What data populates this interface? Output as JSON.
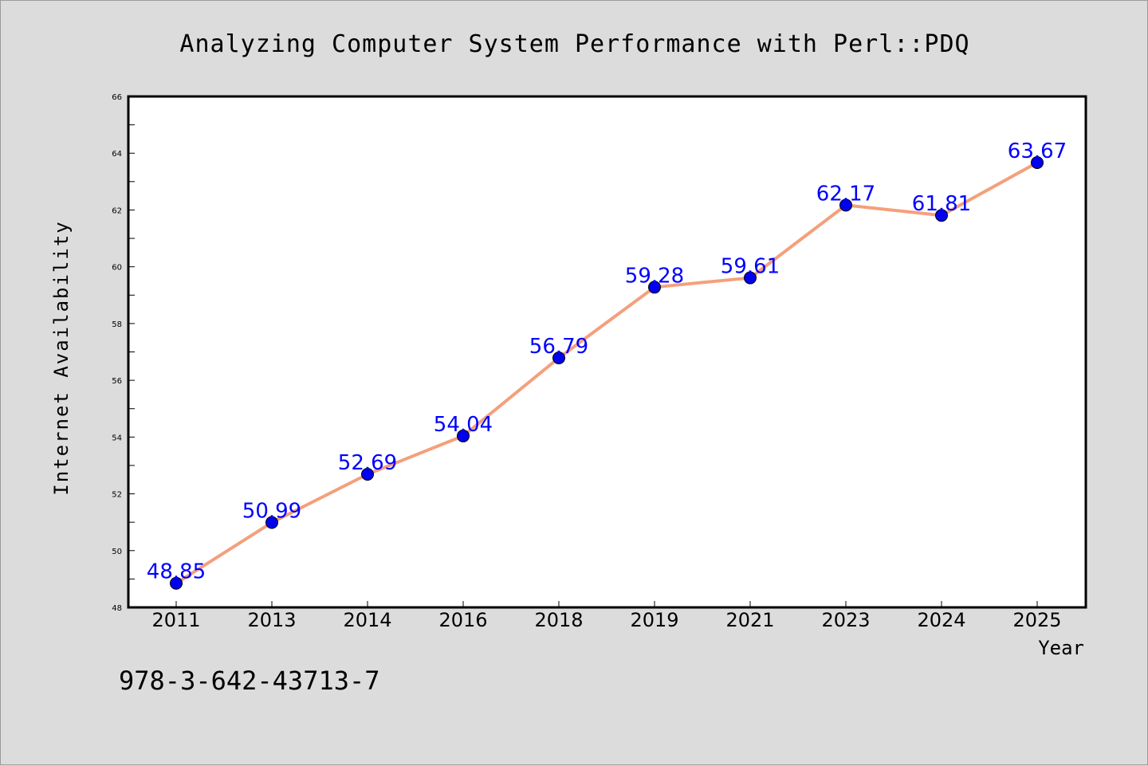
{
  "chart_data": {
    "type": "line",
    "title": "Analyzing Computer System Performance with Perl::PDQ",
    "xlabel": "Year",
    "ylabel": "Internet Availability",
    "categories": [
      "2011",
      "2013",
      "2014",
      "2016",
      "2018",
      "2019",
      "2021",
      "2023",
      "2024",
      "2025"
    ],
    "series": [
      {
        "values": [
          48.85,
          50.99,
          52.69,
          54.04,
          56.79,
          59.28,
          59.61,
          62.17,
          61.81,
          63.67
        ],
        "data_labels": [
          "48.85",
          "50.99",
          "52.69",
          "54.04",
          "56.79",
          "59.28",
          "59.61",
          "62.17",
          "61.81",
          "63.67"
        ]
      }
    ],
    "ylim": [
      48,
      66
    ],
    "yticks": [
      "48",
      "50",
      "52",
      "54",
      "56",
      "58",
      "60",
      "62",
      "64",
      "66"
    ],
    "grid": false,
    "legend": "none",
    "colors": {
      "line": "#f4a07c",
      "marker": "#0000ee",
      "data_label": "#0000ff",
      "background": "#dcdcdc",
      "plot_background": "#ffffff"
    }
  },
  "footer": {
    "isbn": "978-3-642-43713-7"
  }
}
